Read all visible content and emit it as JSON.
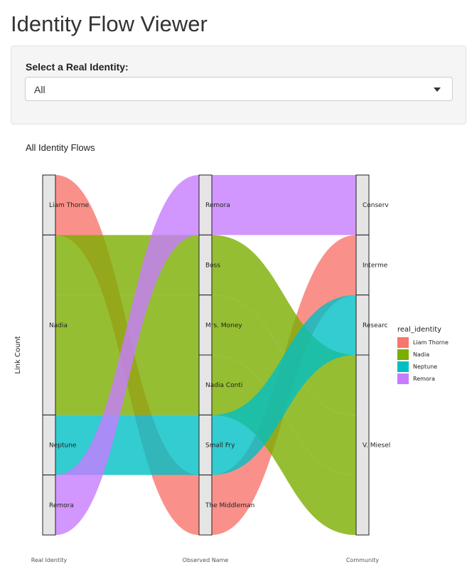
{
  "page": {
    "title": "Identity Flow Viewer"
  },
  "control": {
    "label": "Select a Real Identity:",
    "selected": "All"
  },
  "chart_data": {
    "type": "alluvial",
    "title": "All Identity Flows",
    "ylabel": "Link Count",
    "axes": [
      "Real Identity",
      "Observed Name",
      "Community"
    ],
    "axis_nodes": [
      [
        "Liam Thorne",
        "Nadia",
        "Neptune",
        "Remora"
      ],
      [
        "Remora",
        "Boss",
        "Mrs. Money",
        "Nadia Conti",
        "Small Fry",
        "The Middleman"
      ],
      [
        "Conserv",
        "Interme",
        "Researc",
        "V. Miesel"
      ]
    ],
    "legend": {
      "title": "real_identity",
      "entries": [
        {
          "name": "Liam Thorne",
          "color": "#F8766D"
        },
        {
          "name": "Nadia",
          "color": "#7CAE00"
        },
        {
          "name": "Neptune",
          "color": "#00BFC4"
        },
        {
          "name": "Remora",
          "color": "#C77CFF"
        }
      ]
    },
    "flows": [
      {
        "real_identity": "Liam Thorne",
        "observed": "The Middleman",
        "community": "Interme",
        "count": 1
      },
      {
        "real_identity": "Nadia",
        "observed": "Boss",
        "community": "V. Miesel",
        "count": 1
      },
      {
        "real_identity": "Nadia",
        "observed": "Mrs. Money",
        "community": "V. Miesel",
        "count": 1
      },
      {
        "real_identity": "Nadia",
        "observed": "Nadia Conti",
        "community": "V. Miesel",
        "count": 1
      },
      {
        "real_identity": "Neptune",
        "observed": "Small Fry",
        "community": "Researc",
        "count": 1
      },
      {
        "real_identity": "Remora",
        "observed": "Remora",
        "community": "Conserv",
        "count": 1
      }
    ]
  }
}
